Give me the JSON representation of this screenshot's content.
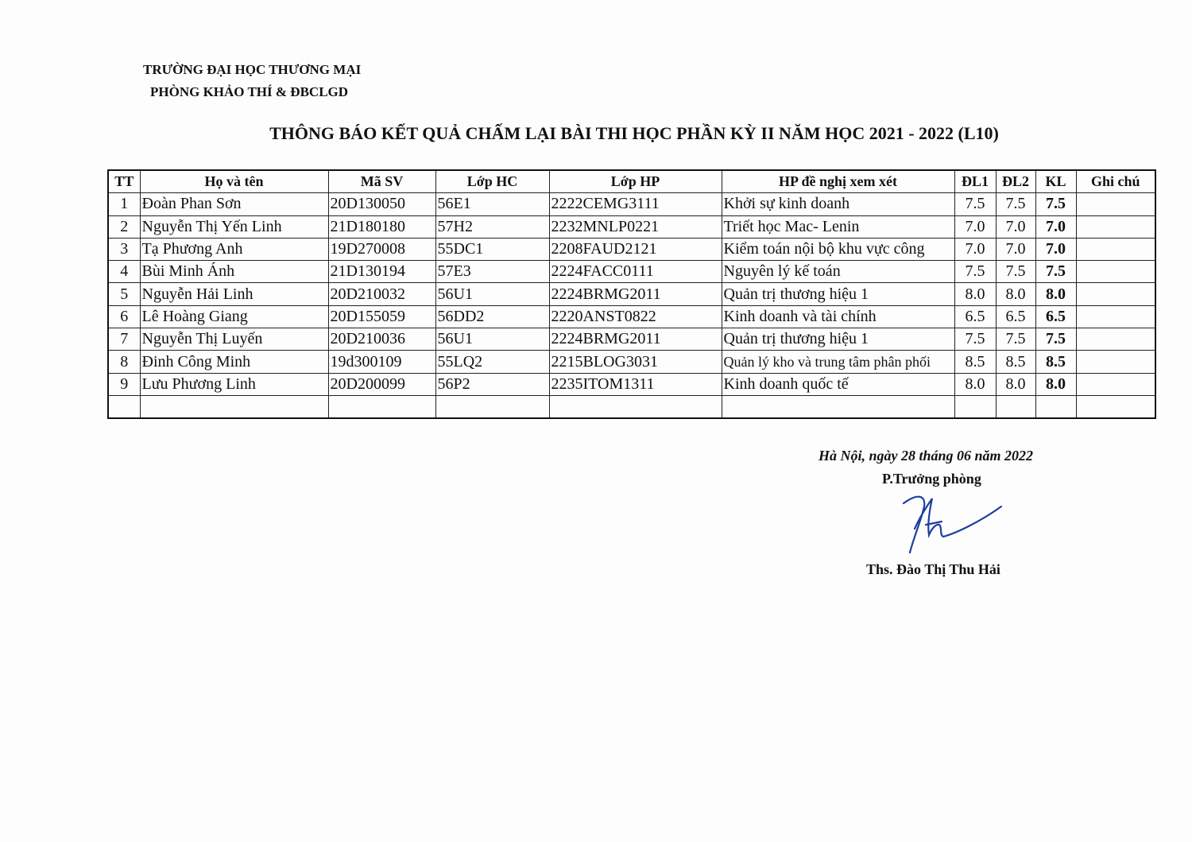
{
  "header": {
    "school": "TRƯỜNG ĐẠI HỌC THƯƠNG MẠI",
    "department": "PHÒNG KHẢO THÍ & ĐBCLGD"
  },
  "title": "THÔNG BÁO KẾT QUẢ CHẤM LẠI BÀI THI HỌC PHẦN KỲ II NĂM HỌC 2021 - 2022 (L10)",
  "table": {
    "columns": [
      "TT",
      "Họ và tên",
      "Mã SV",
      "Lớp HC",
      "Lớp HP",
      "HP đề nghị xem xét",
      "ĐL1",
      "ĐL2",
      "KL",
      "Ghi chú"
    ],
    "rows": [
      [
        "1",
        "Đoàn Phan Sơn",
        "20D130050",
        "56E1",
        "2222CEMG3111",
        "Khởi sự kinh doanh",
        "7.5",
        "7.5",
        "7.5",
        ""
      ],
      [
        "2",
        "Nguyễn Thị Yến Linh",
        "21D180180",
        "57H2",
        "2232MNLP0221",
        "Triết học Mac- Lenin",
        "7.0",
        "7.0",
        "7.0",
        ""
      ],
      [
        "3",
        "Tạ Phương Anh",
        "19D270008",
        "55DC1",
        "2208FAUD2121",
        "Kiểm toán nội bộ khu vực công",
        "7.0",
        "7.0",
        "7.0",
        ""
      ],
      [
        "4",
        "Bùi Minh Ánh",
        "21D130194",
        "57E3",
        "2224FACC0111",
        "Nguyên lý kế toán",
        "7.5",
        "7.5",
        "7.5",
        ""
      ],
      [
        "5",
        "Nguyễn Hải Linh",
        "20D210032",
        "56U1",
        "2224BRMG2011",
        "Quản trị thương hiệu 1",
        "8.0",
        "8.0",
        "8.0",
        ""
      ],
      [
        "6",
        "Lê Hoàng Giang",
        "20D155059",
        "56DD2",
        "2220ANST0822",
        "Kinh doanh và tài chính",
        "6.5",
        "6.5",
        "6.5",
        ""
      ],
      [
        "7",
        "Nguyễn Thị Luyến",
        "20D210036",
        "56U1",
        "2224BRMG2011",
        "Quản trị thương hiệu 1",
        "7.5",
        "7.5",
        "7.5",
        ""
      ],
      [
        "8",
        "Đinh Công Minh",
        "19d300109",
        "55LQ2",
        "2215BLOG3031",
        "Quản lý kho và trung tâm phân phối",
        "8.5",
        "8.5",
        "8.5",
        ""
      ],
      [
        "9",
        "Lưu Phương Linh",
        "20D200099",
        "56P2",
        "2235ITOM1311",
        "Kinh doanh quốc tế",
        "8.0",
        "8.0",
        "8.0",
        ""
      ]
    ]
  },
  "footer": {
    "date": "Hà Nội, ngày 28 tháng  06 năm 2022",
    "role": "P.Trưởng phòng",
    "signer": "Ths. Đào Thị Thu Hải"
  },
  "colors": {
    "signature": "#1f3f9e"
  }
}
